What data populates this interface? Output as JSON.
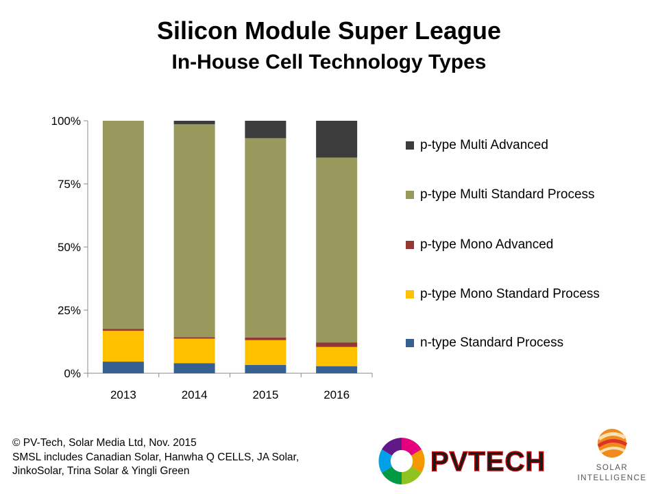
{
  "title": "Silicon Module Super League",
  "subtitle": "In-House Cell Technology Types",
  "chart_data": {
    "type": "bar",
    "stacked": true,
    "categories": [
      "2013",
      "2014",
      "2015",
      "2016"
    ],
    "yticks": [
      "0%",
      "25%",
      "50%",
      "75%",
      "100%"
    ],
    "ylim": [
      0,
      100
    ],
    "legend_position": "right",
    "series": [
      {
        "name": "n-type Standard Process",
        "color": "#376092",
        "values": [
          4.6,
          4.0,
          3.3,
          2.8
        ]
      },
      {
        "name": "p-type Mono Standard Process",
        "color": "#ffc000",
        "values": [
          12.2,
          9.7,
          9.8,
          7.6
        ]
      },
      {
        "name": "p-type Mono Advanced",
        "color": "#953735",
        "values": [
          0.8,
          0.6,
          1.1,
          1.8
        ]
      },
      {
        "name": "p-type Multi Standard Process",
        "color": "#99995e",
        "values": [
          82.4,
          84.3,
          78.9,
          73.2
        ]
      },
      {
        "name": "p-type Multi Advanced",
        "color": "#3c3c3c",
        "values": [
          0.0,
          1.4,
          6.9,
          14.6
        ]
      }
    ]
  },
  "footer": {
    "line1": "© PV-Tech, Solar Media Ltd, Nov. 2015",
    "line2": "SMSL includes Canadian Solar, Hanwha Q CELLS, JA Solar,",
    "line3": "JinkoSolar, Trina Solar & Yingli Green"
  },
  "logos": {
    "pvtech": "PVTECH",
    "solar_intelligence_line1": "SOLAR",
    "solar_intelligence_line2": "INTELLIGENCE"
  }
}
